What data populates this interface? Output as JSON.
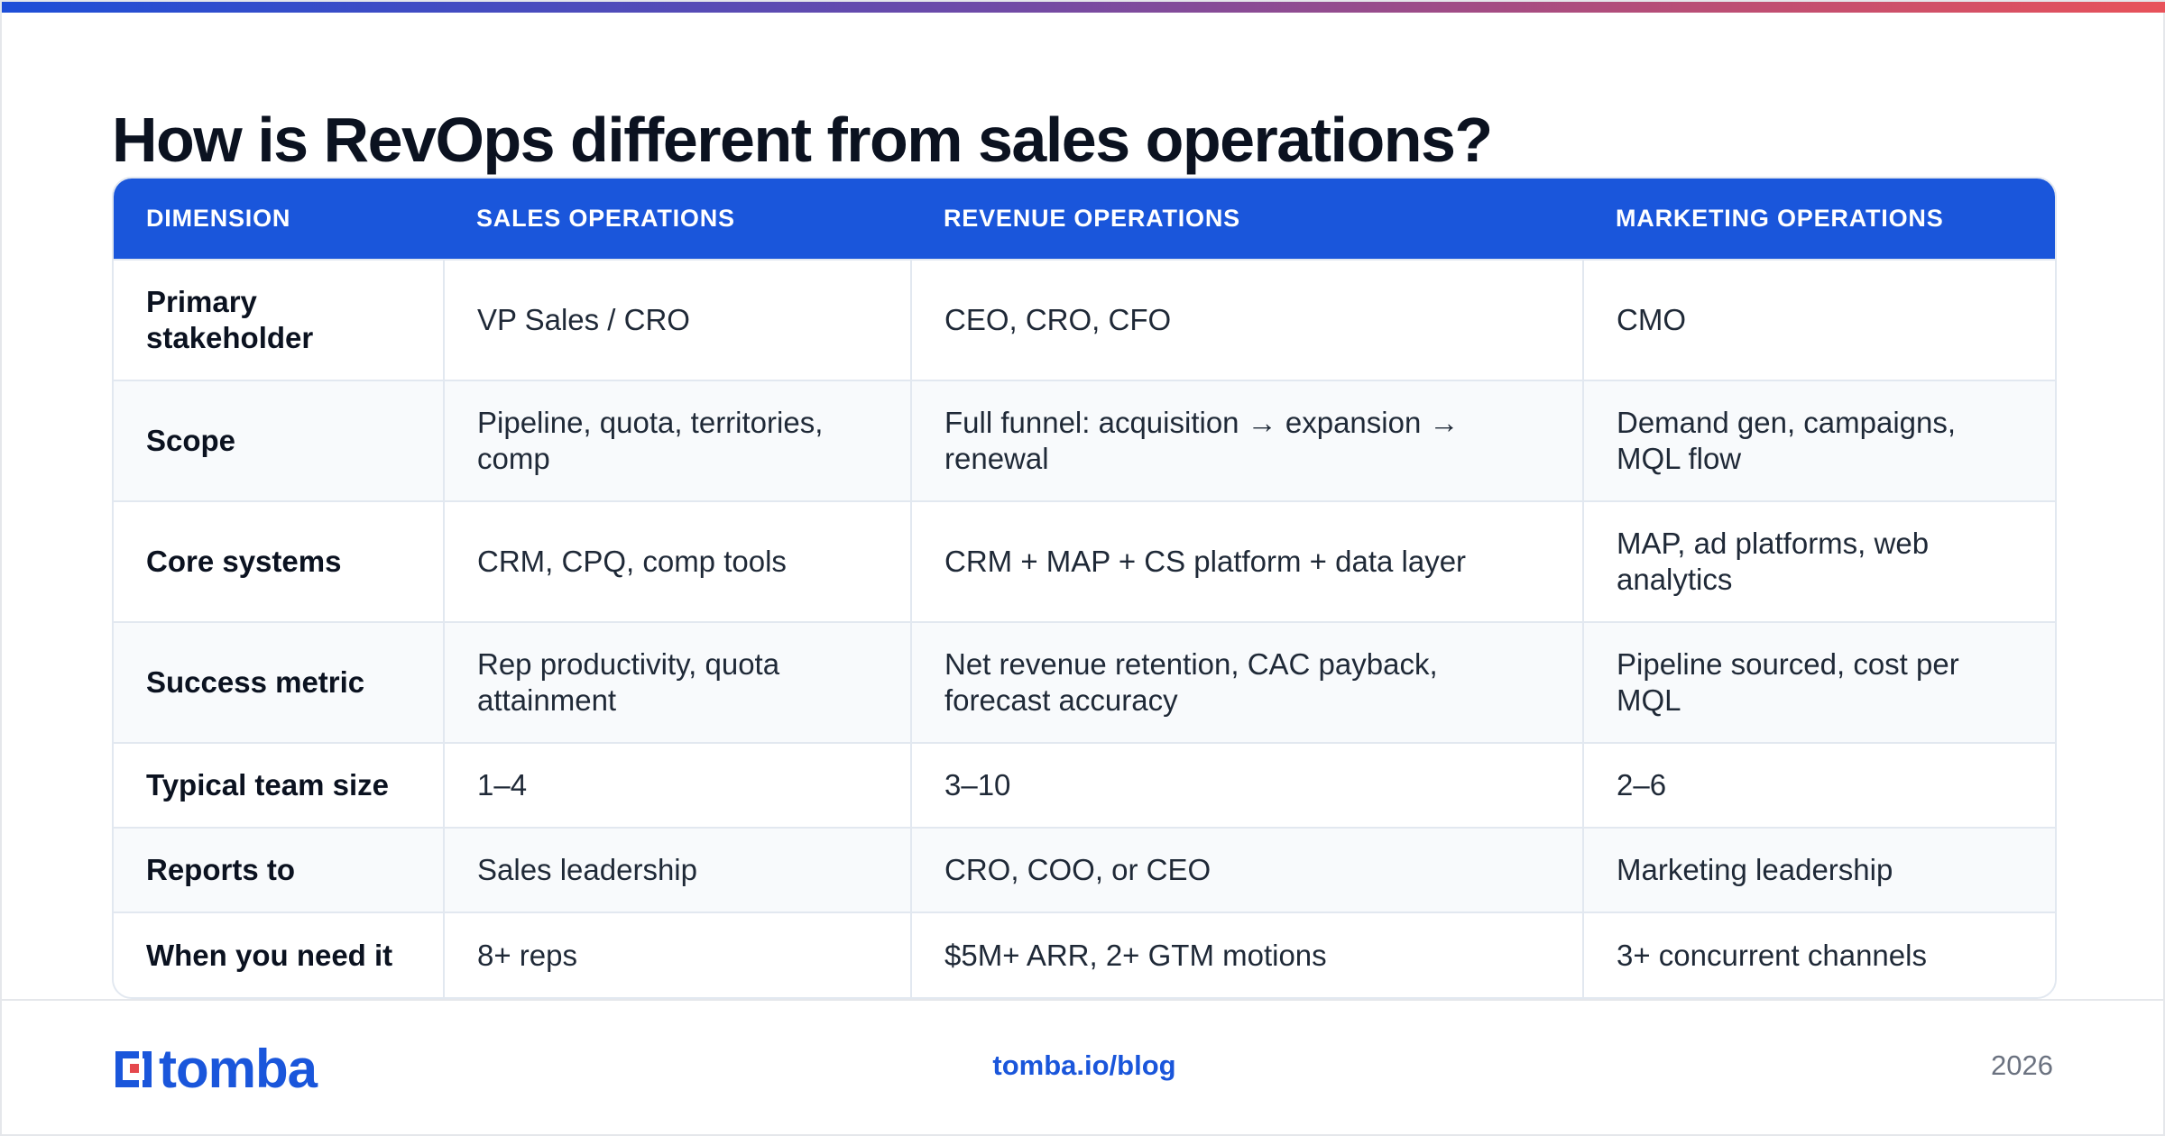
{
  "title": "How is RevOps different from sales operations?",
  "table": {
    "headers": [
      "DIMENSION",
      "SALES OPERATIONS",
      "REVENUE OPERATIONS",
      "MARKETING OPERATIONS"
    ],
    "rows": [
      [
        "Primary stakeholder",
        "VP Sales / CRO",
        "CEO, CRO, CFO",
        "CMO"
      ],
      [
        "Scope",
        "Pipeline, quota, territories, comp",
        "Full funnel: acquisition → expansion → renewal",
        "Demand gen, campaigns, MQL flow"
      ],
      [
        "Core systems",
        "CRM, CPQ, comp tools",
        "CRM + MAP + CS platform + data layer",
        "MAP, ad platforms, web analytics"
      ],
      [
        "Success metric",
        "Rep productivity, quota attainment",
        "Net revenue retention, CAC payback, forecast accuracy",
        "Pipeline sourced, cost per MQL"
      ],
      [
        "Typical team size",
        "1–4",
        "3–10",
        "2–6"
      ],
      [
        "Reports to",
        "Sales leadership",
        "CRO, COO, or CEO",
        "Marketing leadership"
      ],
      [
        "When you need it",
        "8+ reps",
        "$5M+ ARR, 2+ GTM motions",
        "3+ concurrent channels"
      ]
    ]
  },
  "footer": {
    "logo_text": "tomba",
    "url": "tomba.io/blog",
    "year": "2026"
  },
  "colors": {
    "accent": "#1a56db",
    "gradient_start": "#1d4ed8",
    "gradient_end": "#e8525a",
    "logo_red": "#e5484d"
  }
}
